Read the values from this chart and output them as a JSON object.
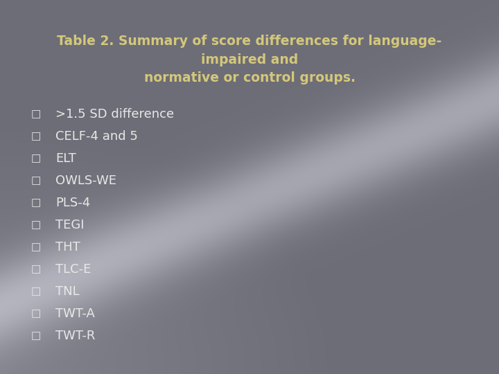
{
  "title_line1": "Table 2. Summary of score differences for language-",
  "title_line2": "impaired and",
  "title_line3": "normative or control groups.",
  "title_color": "#d4c87a",
  "title_fontsize": 13.5,
  "bullet_items": [
    ">1.5 SD difference",
    "CELF-4 and 5",
    "ELT",
    "OWLS-WE",
    "PLS-4",
    "TEGI",
    "THT",
    "TLC-E",
    "TNL",
    "TWT-A",
    "TWT-R"
  ],
  "bullet_color": "#e8e8e8",
  "bullet_fontsize": 13,
  "bullet_square": "□",
  "bg_base": "#6e6e78",
  "bg_dark": "#5a5a64",
  "bg_light": "#a0a0aa",
  "fig_width": 7.2,
  "fig_height": 5.4,
  "dpi": 100
}
